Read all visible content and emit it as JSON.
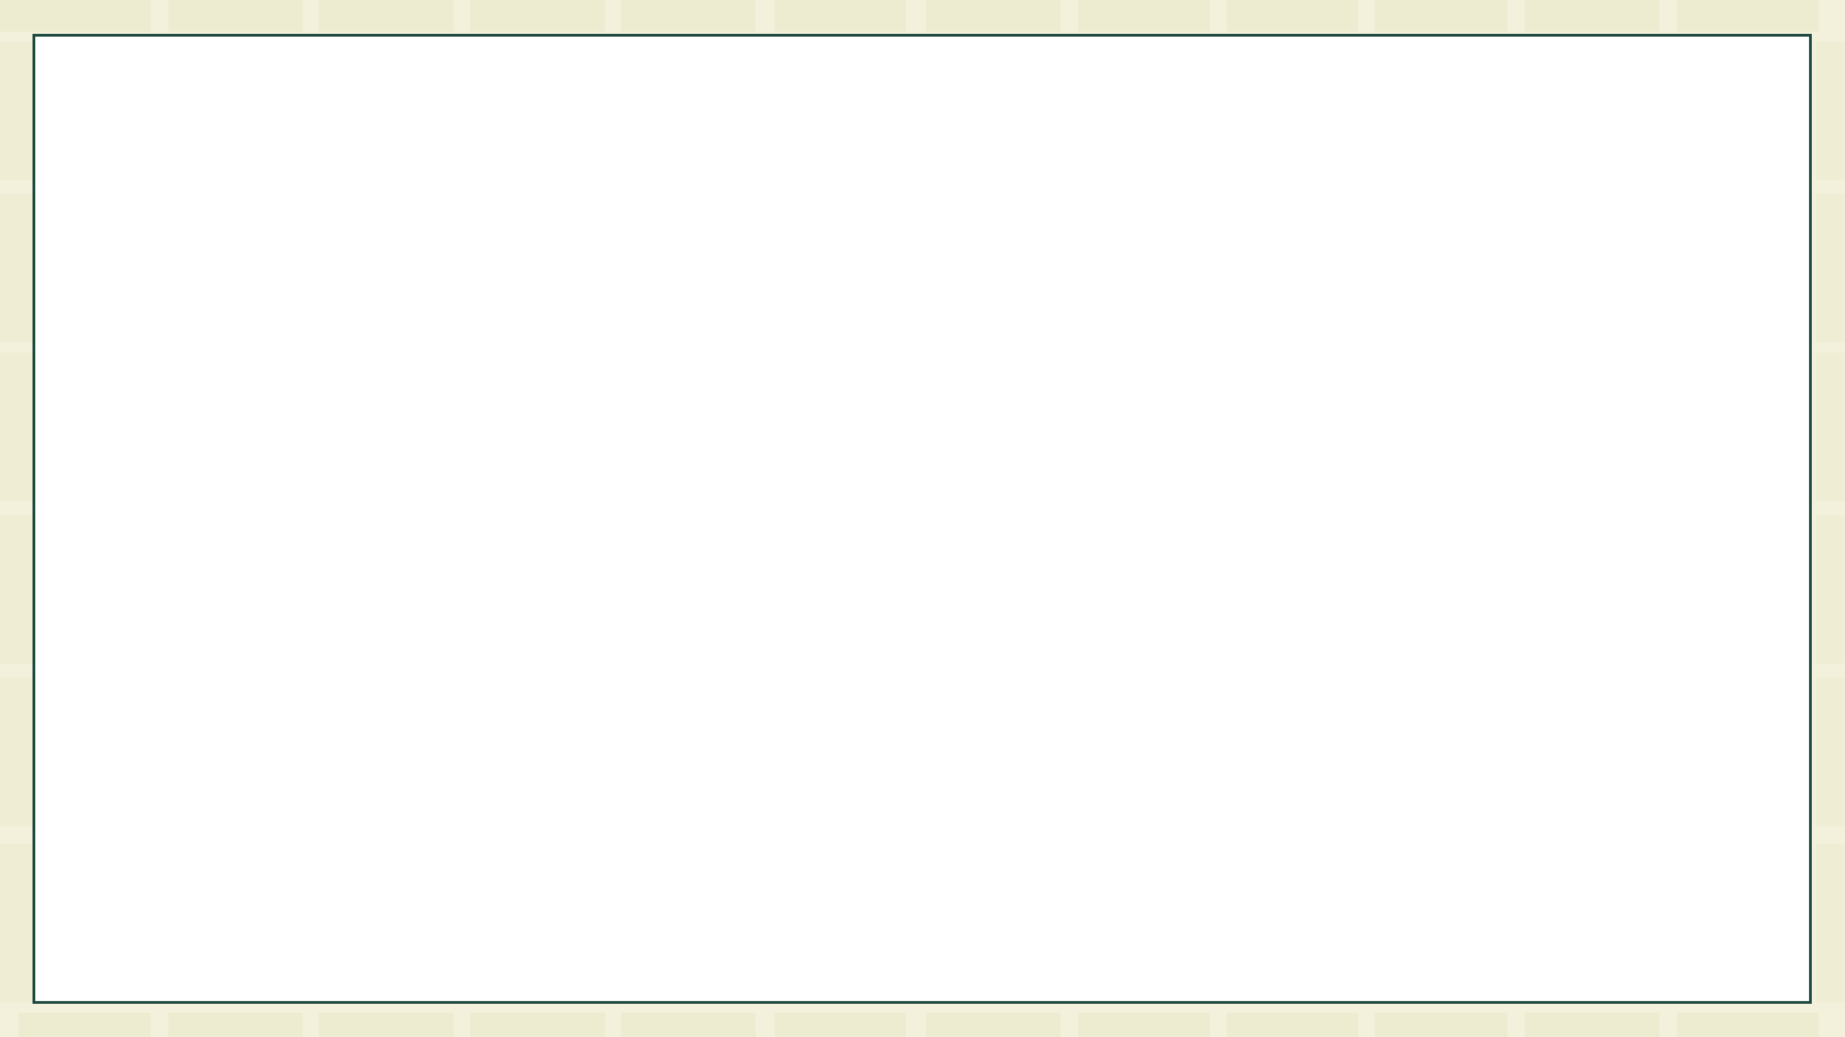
{
  "slide": {
    "background_color": "#f3f1dc",
    "tile_color": "#eeecd0",
    "frame_border_color": "#1f4a3f",
    "frame_fill_color": "#ffffff"
  }
}
